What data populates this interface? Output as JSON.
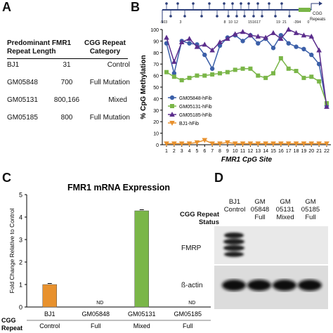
{
  "panels": {
    "a": "A",
    "b": "B",
    "c": "C",
    "d": "D"
  },
  "table": {
    "header_col1_line1": "Predominant FMR1",
    "header_col1_line2": "Repeat Length",
    "header_col2_line1": "CGG Repeat",
    "header_col2_line2": "Category",
    "rows": [
      {
        "line": "BJ1",
        "length": "31",
        "category": "Control"
      },
      {
        "line": "GM05848",
        "length": "700",
        "category": "Full Mutation"
      },
      {
        "line": "GM05131",
        "length": "800,166",
        "category": "Mixed"
      },
      {
        "line": "GM05185",
        "length": "800",
        "category": "Full Mutation"
      }
    ]
  },
  "gene_map": {
    "label": "CGG\nRepeats",
    "positions": [
      "-503",
      "3",
      "8",
      "10",
      "12",
      "15",
      "16",
      "17",
      "19",
      "21",
      "-394",
      "0"
    ]
  },
  "chart_data": [
    {
      "type": "line",
      "xlabel": "FMR1 CpG Site",
      "ylabel": "% CpG Methylation",
      "xlim": [
        1,
        22
      ],
      "ylim": [
        0,
        100
      ],
      "yticks": [
        0,
        10,
        20,
        30,
        40,
        50,
        60,
        70,
        80,
        90,
        100
      ],
      "categories": [
        "1",
        "2",
        "3",
        "4",
        "5",
        "6",
        "7",
        "8",
        "9",
        "10",
        "11",
        "12",
        "13",
        "14",
        "15",
        "16",
        "17",
        "18",
        "19",
        "20",
        "21",
        "22"
      ],
      "legend_position": "left",
      "series": [
        {
          "name": "GM05848-hFib",
          "color": "#3b5fa8",
          "marker": "circle",
          "values": [
            88,
            62,
            90,
            88,
            87,
            78,
            66,
            86,
            93,
            95,
            90,
            95,
            88,
            92,
            84,
            95,
            88,
            85,
            83,
            78,
            70,
            34
          ]
        },
        {
          "name": "GM05131-hFib",
          "color": "#7ab648",
          "marker": "square",
          "values": [
            63,
            59,
            56,
            58,
            60,
            60,
            61,
            62,
            63,
            65,
            66,
            66,
            60,
            58,
            62,
            75,
            66,
            64,
            58,
            59,
            55,
            36
          ]
        },
        {
          "name": "GM05185-hFib",
          "color": "#5b2d8c",
          "marker": "triangle",
          "values": [
            93,
            72,
            89,
            92,
            85,
            87,
            82,
            89,
            92,
            96,
            98,
            95,
            94,
            93,
            97,
            92,
            100,
            97,
            95,
            94,
            82,
            33
          ]
        },
        {
          "name": "BJ1-hFib",
          "color": "#e8912d",
          "marker": "triangle-down",
          "values": [
            1,
            1,
            1,
            1,
            2,
            4,
            1,
            1,
            2,
            1,
            1,
            1,
            1,
            1,
            1,
            1,
            1,
            1,
            1,
            1,
            1,
            1
          ]
        }
      ]
    },
    {
      "type": "bar",
      "title": "FMR1 mRNA Expression",
      "ylabel": "Fold Change Relative to Control",
      "ylim": [
        0,
        5
      ],
      "yticks": [
        0,
        1,
        2,
        3,
        4,
        5
      ],
      "categories": [
        "BJ1",
        "GM05848",
        "GM05131",
        "GM05185"
      ],
      "values": [
        1.0,
        0,
        4.28,
        0
      ],
      "bar_colors": [
        "#e8912d",
        "#888888",
        "#7ab648",
        "#888888"
      ],
      "annotations": [
        "",
        "ND",
        "",
        "ND"
      ],
      "row_label": [
        "CGG",
        "Repeat"
      ],
      "repeat_status": [
        "Control",
        "Full",
        "Mixed",
        "Full"
      ]
    }
  ],
  "blot": {
    "header": [
      "CGG Repeat",
      "Status"
    ],
    "lanes": [
      {
        "name": [
          "BJ1"
        ],
        "status": "Control"
      },
      {
        "name": [
          "GM",
          "05848"
        ],
        "status": "Full"
      },
      {
        "name": [
          "GM",
          "05131"
        ],
        "status": "Mixed"
      },
      {
        "name": [
          "GM",
          "05185"
        ],
        "status": "Full"
      }
    ],
    "rows": [
      "FMRP",
      "ß-actin"
    ]
  }
}
